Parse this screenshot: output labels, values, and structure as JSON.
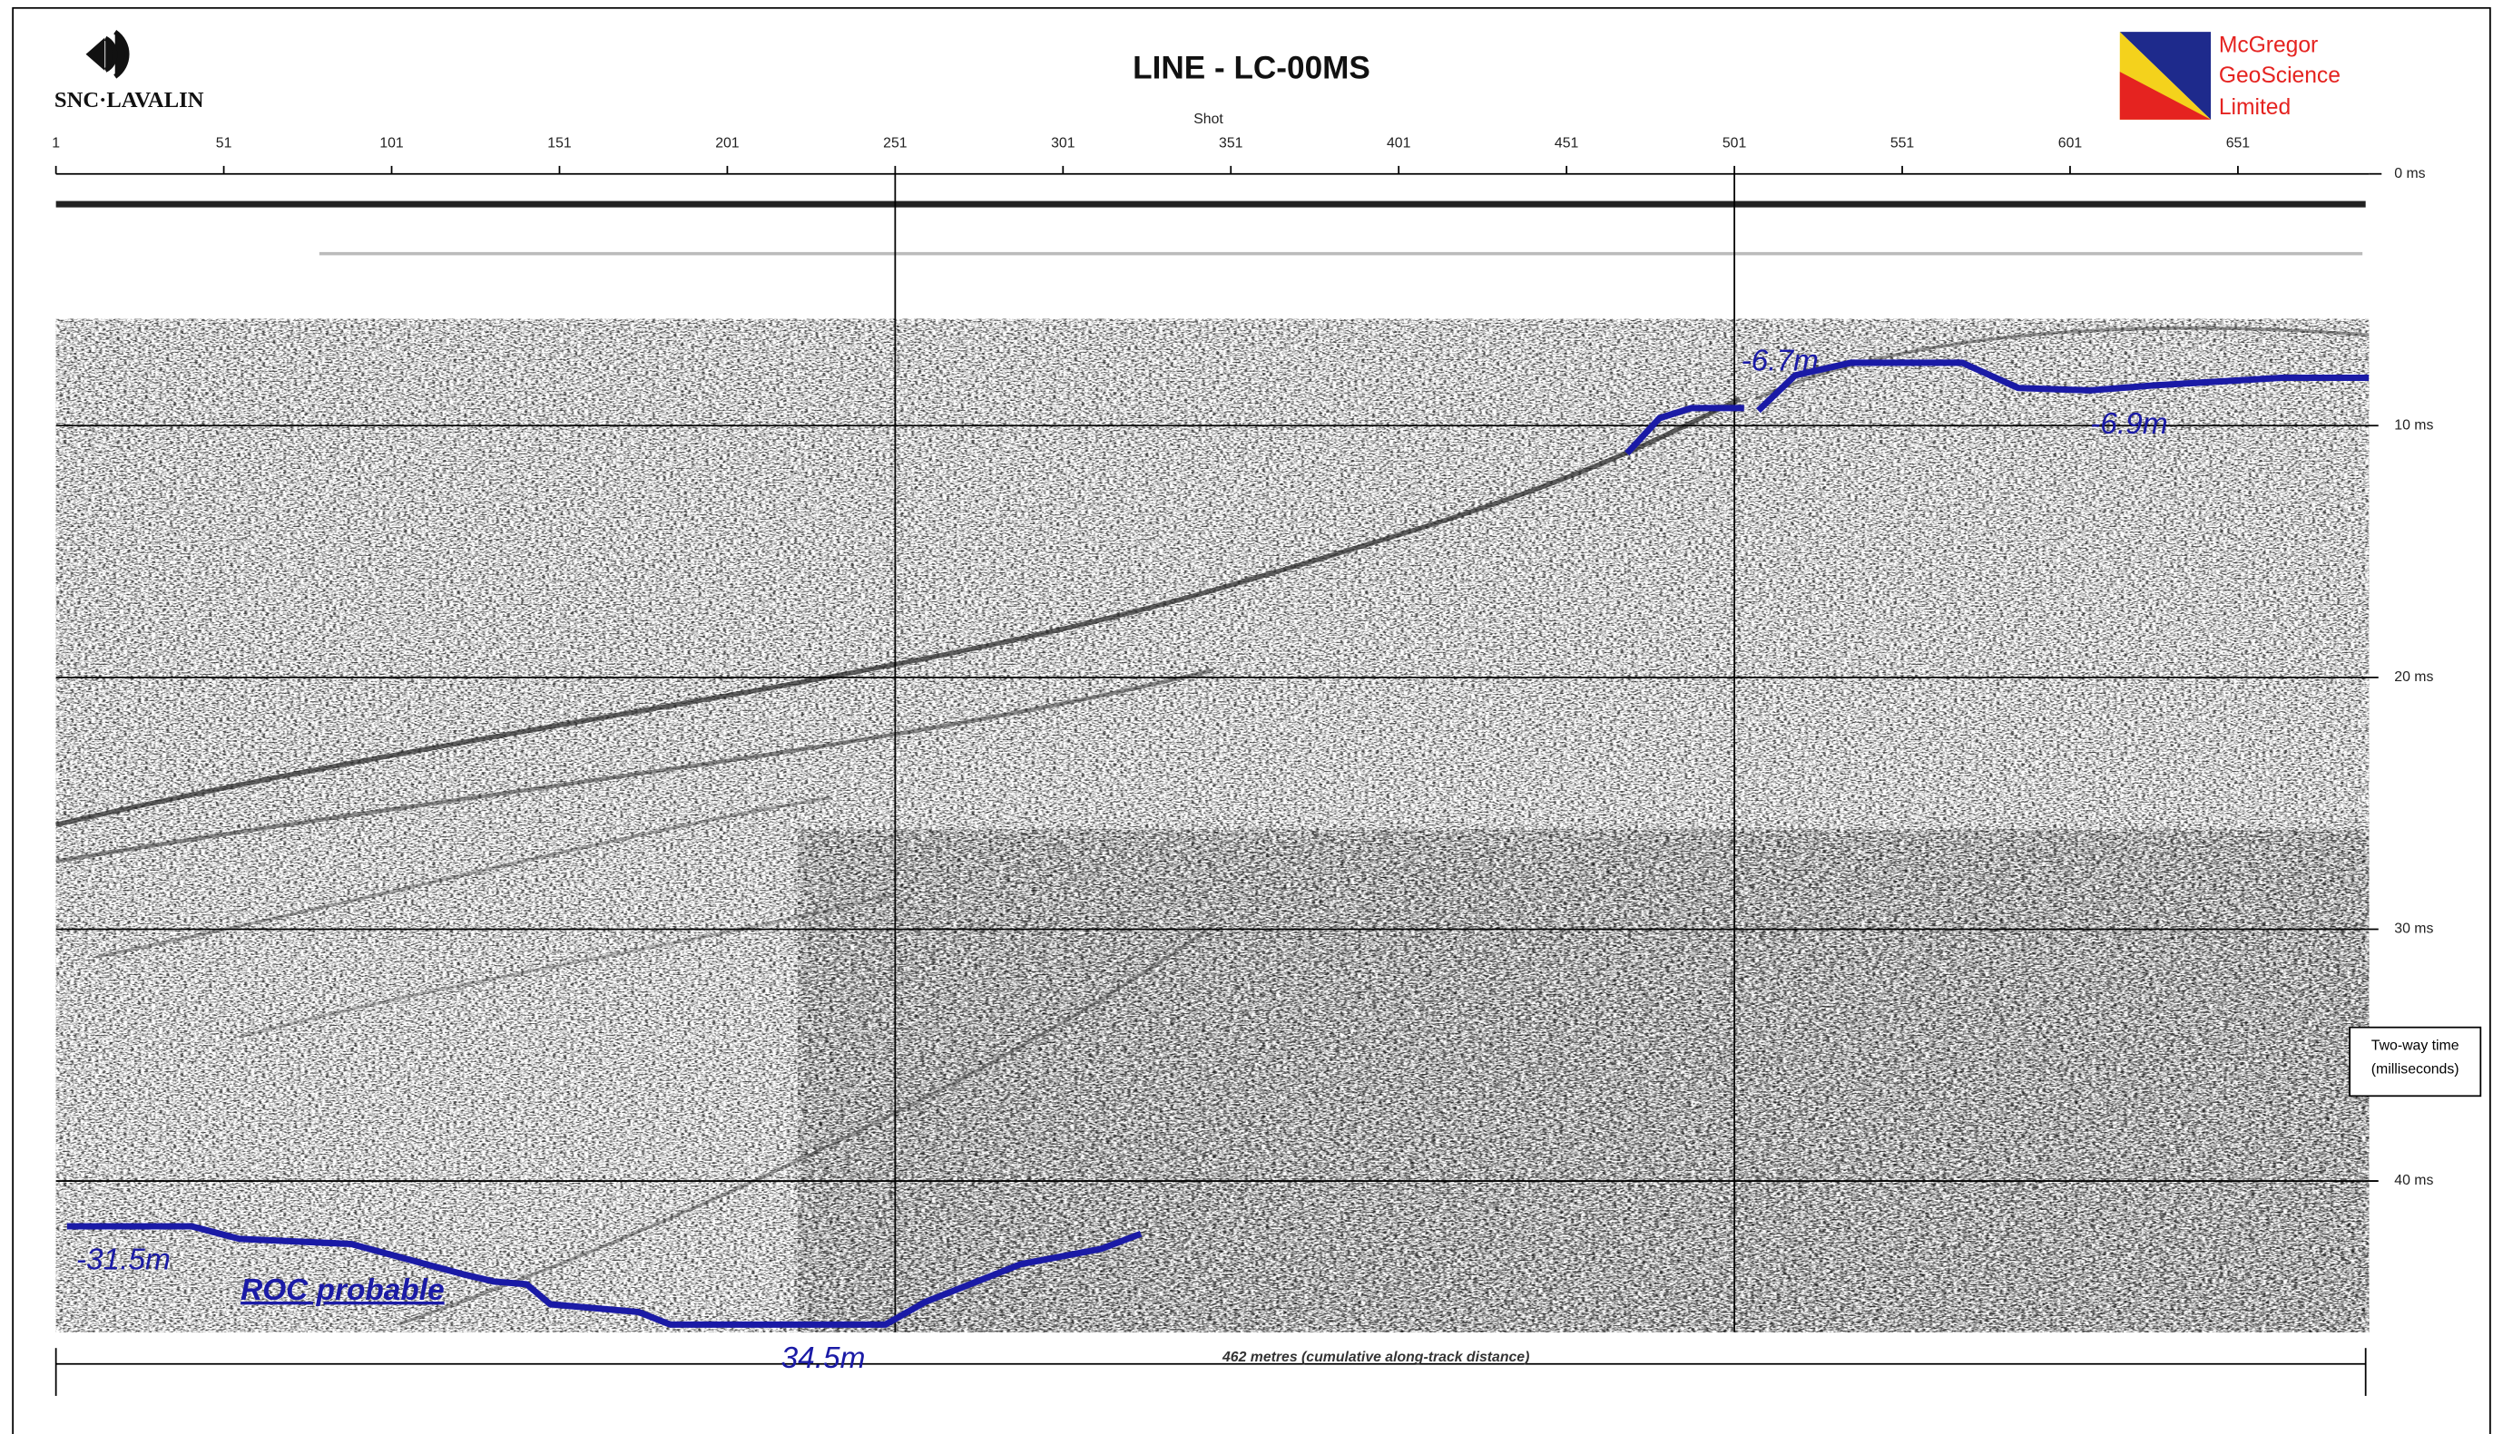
{
  "chart_data": {
    "type": "seismic",
    "title": "LINE - LC-00MS",
    "x_label": "Shot",
    "y_label": "Two-way time (milliseconds)",
    "distance_label": "462 metres (cumulative along-track distance)",
    "left_logo": "SNC·LAVALIN",
    "right_logo": [
      "McGregor",
      "GeoScience",
      "Limited"
    ],
    "xlim": [
      1,
      690
    ],
    "ylim": [
      0,
      46
    ],
    "xticks": [
      1,
      51,
      101,
      151,
      201,
      251,
      301,
      351,
      401,
      451,
      501,
      551,
      601,
      651
    ],
    "yticks": [
      {
        "value": 0,
        "label": "0 ms"
      },
      {
        "value": 10,
        "label": "10 ms"
      },
      {
        "value": 20,
        "label": "20 ms"
      },
      {
        "value": 30,
        "label": "30 ms"
      },
      {
        "value": 40,
        "label": "40 ms"
      }
    ],
    "x_grid_lines": [
      251,
      501
    ],
    "horizon_color": "#1a1aa6",
    "horizons": [
      {
        "x": [
          469,
          478.7,
          488.2,
          503.9
        ],
        "values": [
          11.1,
          9.7,
          9.3,
          9.3
        ]
      },
      {
        "x": [
          508.1,
          519.1,
          535.7,
          568.9,
          585.6,
          607,
          626,
          664,
          690
        ],
        "values": [
          9.4,
          8.0,
          7.5,
          7.5,
          8.5,
          8.6,
          8.4,
          8.1,
          8.1
        ]
      },
      {
        "x": [
          4.3,
          41.4,
          55.7,
          88.9,
          122.2,
          131.7,
          141.2,
          148.3,
          174.5,
          184,
          248.1,
          260,
          288.5,
          312.3,
          324.2
        ],
        "values": [
          41.8,
          41.8,
          42.3,
          42.5,
          43.7,
          44.0,
          44.1,
          44.9,
          45.2,
          45.7,
          45.7,
          44.8,
          43.3,
          42.7,
          42.1
        ]
      }
    ],
    "annotations": [
      {
        "text": "-6.7m",
        "x": 503,
        "y": 7.5
      },
      {
        "text": "-6.9m",
        "x": 607,
        "y": 10.0
      },
      {
        "text": "-31.5m",
        "x": 7,
        "y": 43.2
      },
      {
        "text": "ROC probable",
        "x": 56,
        "y": 44.4,
        "style": "underline"
      },
      {
        "text": "34.5m",
        "x": 217,
        "y": 47.1
      }
    ]
  }
}
